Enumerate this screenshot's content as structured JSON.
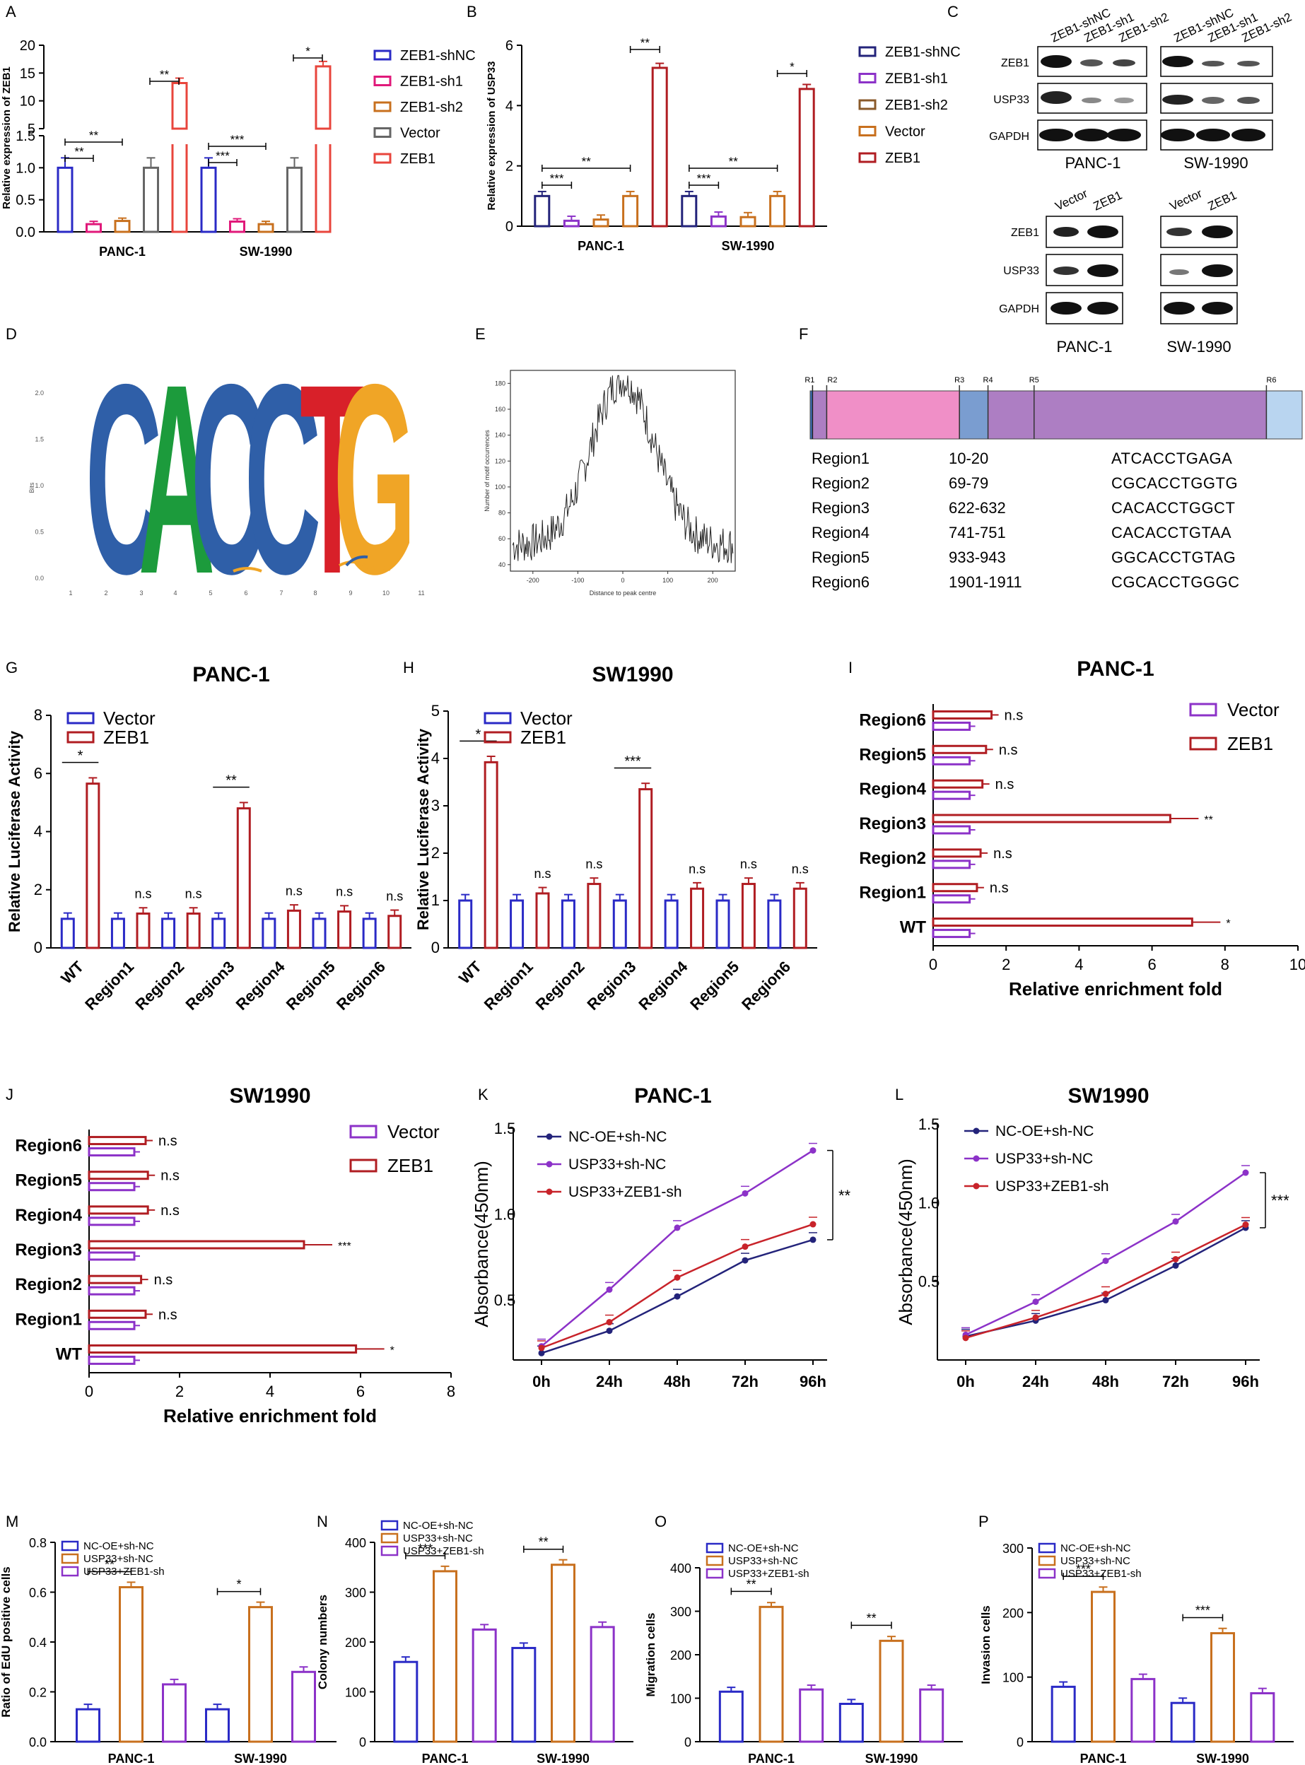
{
  "colors": {
    "blue": "#2a2ac6",
    "magenta": "#e0197a",
    "orange": "#c8701e",
    "gray": "#666666",
    "red": "#e8453c",
    "darkred": "#b01d22",
    "purple": "#8c32c8",
    "navy": "#23237a",
    "pink_region": "#f08fc7",
    "lavender_region": "#ad7ec3",
    "steel_region": "#7a9dd0",
    "light_region": "#b9d5f0"
  },
  "chart_data": [
    {
      "id": "A",
      "panel_label": "A",
      "type": "bar",
      "ylabel": "Relative expression of ZEB1",
      "categories": [
        "PANC-1",
        "SW-1990"
      ],
      "series": [
        {
          "name": "ZEB1-shNC",
          "values": [
            1.0,
            1.0
          ]
        },
        {
          "name": "ZEB1-sh1",
          "values": [
            0.12,
            0.16
          ]
        },
        {
          "name": "ZEB1-sh2",
          "values": [
            0.17,
            0.12
          ]
        },
        {
          "name": "Vector",
          "values": [
            1.0,
            1.0
          ]
        },
        {
          "name": "ZEB1",
          "values": [
            13.2,
            16.2
          ]
        }
      ],
      "axis_break": {
        "lower": [
          0,
          1.5
        ],
        "upper": [
          5,
          20
        ]
      },
      "lower_ticks": [
        "0.0",
        "0.5",
        "1.0",
        "1.5"
      ],
      "upper_ticks": [
        "5",
        "10",
        "15",
        "20"
      ],
      "significance": [
        "**",
        "**",
        "**",
        "***",
        "***",
        "*"
      ]
    },
    {
      "id": "B",
      "panel_label": "B",
      "type": "bar",
      "ylabel": "Relative expression of USP33",
      "categories": [
        "PANC-1",
        "SW-1990"
      ],
      "ylim": [
        0,
        6
      ],
      "yticks": [
        "0",
        "2",
        "4",
        "6"
      ],
      "series": [
        {
          "name": "ZEB1-shNC",
          "values": [
            1.0,
            1.0
          ]
        },
        {
          "name": "ZEB1-sh1",
          "values": [
            0.18,
            0.32
          ]
        },
        {
          "name": "ZEB1-sh2",
          "values": [
            0.22,
            0.3
          ]
        },
        {
          "name": "Vector",
          "values": [
            1.0,
            1.0
          ]
        },
        {
          "name": "ZEB1",
          "values": [
            5.25,
            4.55
          ]
        }
      ],
      "significance": [
        "***",
        "**",
        "**",
        "***",
        "**",
        "*"
      ]
    },
    {
      "id": "C",
      "panel_label": "C",
      "type": "table",
      "top_lanes": [
        "ZEB1-shNC",
        "ZEB1-sh1",
        "ZEB1-sh2",
        "ZEB1-shNC",
        "ZEB1-sh1",
        "ZEB1-sh2"
      ],
      "top_rows": [
        "ZEB1",
        "USP33",
        "GAPDH"
      ],
      "bottom_lanes": [
        "Vector",
        "ZEB1",
        "Vector",
        "ZEB1"
      ],
      "bottom_rows": [
        "ZEB1",
        "USP33",
        "GAPDH"
      ],
      "cells": [
        "PANC-1",
        "SW-1990"
      ]
    },
    {
      "id": "D",
      "panel_label": "D",
      "type": "other",
      "ylabel": "Bits",
      "yticks": [
        "0.0",
        "0.5",
        "1.0",
        "1.5",
        "2.0"
      ],
      "positions": [
        "1",
        "2",
        "3",
        "4",
        "5",
        "6",
        "7",
        "8",
        "9",
        "10",
        "11"
      ],
      "motif": "CACCTG"
    },
    {
      "id": "E",
      "panel_label": "E",
      "type": "line",
      "xlabel": "Distance to peak centre",
      "ylabel": "Number of motif occurrences",
      "xticks": [
        "-200",
        "-100",
        "0",
        "100",
        "200"
      ],
      "yticks": [
        "40",
        "60",
        "80",
        "100",
        "120",
        "140",
        "160",
        "180"
      ],
      "xlim": [
        -250,
        250
      ],
      "ylim": [
        35,
        190
      ],
      "peak_x": 0,
      "peak_y": 183,
      "baseline": 55
    },
    {
      "id": "F",
      "panel_label": "F",
      "type": "table",
      "markers": [
        "R1",
        "R2",
        "R3",
        "R4",
        "R5",
        "R6"
      ],
      "marker_positions": [
        10,
        69,
        622,
        741,
        933,
        1901
      ],
      "sequence_length": 2050,
      "rows": [
        [
          "Region1",
          "10-20",
          "ATCACCTGAGA"
        ],
        [
          "Region2",
          "69-79",
          "CGCACCTGGTG"
        ],
        [
          "Region3",
          "622-632",
          "CACACCTGGCT"
        ],
        [
          "Region4",
          "741-751",
          "CACACCTGTAA"
        ],
        [
          "Region5",
          "933-943",
          "GGCACCTGTAG"
        ],
        [
          "Region6",
          "1901-1911",
          "CGCACCTGGGC"
        ]
      ]
    },
    {
      "id": "G",
      "panel_label": "G",
      "type": "bar",
      "title": "PANC-1",
      "ylabel": "Relative Luciferase Activity",
      "categories": [
        "WT",
        "Region1",
        "Region2",
        "Region3",
        "Region4",
        "Region5",
        "Region6"
      ],
      "ylim": [
        0,
        8
      ],
      "yticks": [
        "0",
        "2",
        "4",
        "6",
        "8"
      ],
      "series": [
        {
          "name": "Vector",
          "values": [
            1.0,
            1.0,
            1.0,
            1.0,
            1.0,
            1.0,
            1.0
          ]
        },
        {
          "name": "ZEB1",
          "values": [
            5.65,
            1.18,
            1.18,
            4.8,
            1.28,
            1.25,
            1.1
          ]
        }
      ],
      "significance": [
        "*",
        "n.s",
        "n.s",
        "**",
        "n.s",
        "n.s",
        "n.s"
      ]
    },
    {
      "id": "H",
      "panel_label": "H",
      "type": "bar",
      "title": "SW1990",
      "ylabel": "Relative Luciferase Activity",
      "categories": [
        "WT",
        "Region1",
        "Region2",
        "Region3",
        "Region4",
        "Region5",
        "Region6"
      ],
      "ylim": [
        0,
        5
      ],
      "yticks": [
        "0",
        "1",
        "2",
        "3",
        "4",
        "5"
      ],
      "series": [
        {
          "name": "Vector",
          "values": [
            1.0,
            1.0,
            1.0,
            1.0,
            1.0,
            1.0,
            1.0
          ]
        },
        {
          "name": "ZEB1",
          "values": [
            3.92,
            1.15,
            1.35,
            3.35,
            1.25,
            1.35,
            1.25
          ]
        }
      ],
      "significance": [
        "*",
        "n.s",
        "n.s",
        "***",
        "n.s",
        "n.s",
        "n.s"
      ]
    },
    {
      "id": "I",
      "panel_label": "I",
      "type": "bar",
      "title": "PANC-1",
      "xlabel": "Relative enrichment fold",
      "categories": [
        "WT",
        "Region1",
        "Region2",
        "Region3",
        "Region4",
        "Region5",
        "Region6"
      ],
      "xlim": [
        0,
        10
      ],
      "xticks": [
        "0",
        "2",
        "4",
        "6",
        "8",
        "10"
      ],
      "series": [
        {
          "name": "Vector",
          "values": [
            1.0,
            1.0,
            1.0,
            1.0,
            1.0,
            1.0,
            1.0
          ]
        },
        {
          "name": "ZEB1",
          "values": [
            7.1,
            1.2,
            1.3,
            6.5,
            1.35,
            1.45,
            1.6
          ]
        }
      ],
      "significance": [
        "*",
        "n.s",
        "n.s",
        "**",
        "n.s",
        "n.s",
        "n.s"
      ]
    },
    {
      "id": "J",
      "panel_label": "J",
      "type": "bar",
      "title": "SW1990",
      "xlabel": "Relative enrichment fold",
      "categories": [
        "WT",
        "Region1",
        "Region2",
        "Region3",
        "Region4",
        "Region5",
        "Region6"
      ],
      "xlim": [
        0,
        8
      ],
      "xticks": [
        "0",
        "2",
        "4",
        "6",
        "8"
      ],
      "series": [
        {
          "name": "Vector",
          "values": [
            1.0,
            1.0,
            1.0,
            1.0,
            1.0,
            1.0,
            1.0
          ]
        },
        {
          "name": "ZEB1",
          "values": [
            5.9,
            1.25,
            1.15,
            4.75,
            1.3,
            1.3,
            1.25
          ]
        }
      ],
      "significance": [
        "*",
        "n.s",
        "n.s",
        "***",
        "n.s",
        "n.s",
        "n.s"
      ]
    },
    {
      "id": "K",
      "panel_label": "K",
      "type": "line",
      "title": "PANC-1",
      "ylabel": "Absorbance(450nm)",
      "x": [
        "0h",
        "24h",
        "48h",
        "72h",
        "96h"
      ],
      "ylim": [
        0.15,
        1.5
      ],
      "yticks": [
        "0.5",
        "1.0",
        "1.5"
      ],
      "series": [
        {
          "name": "NC-OE+sh-NC",
          "values": [
            0.19,
            0.32,
            0.52,
            0.73,
            0.85
          ]
        },
        {
          "name": "USP33+sh-NC",
          "values": [
            0.23,
            0.56,
            0.92,
            1.12,
            1.37
          ]
        },
        {
          "name": "USP33+ZEB1-sh",
          "values": [
            0.22,
            0.37,
            0.63,
            0.81,
            0.94
          ]
        }
      ],
      "significance": "**"
    },
    {
      "id": "L",
      "panel_label": "L",
      "type": "line",
      "title": "SW1990",
      "ylabel": "Absorbance(450nm)",
      "x": [
        "0h",
        "24h",
        "48h",
        "72h",
        "96h"
      ],
      "ylim": [
        0.0,
        1.5
      ],
      "yticks": [
        "0.5",
        "1.0",
        "1.5"
      ],
      "series": [
        {
          "name": "NC-OE+sh-NC",
          "values": [
            0.15,
            0.25,
            0.38,
            0.6,
            0.84
          ]
        },
        {
          "name": "USP33+sh-NC",
          "values": [
            0.16,
            0.37,
            0.63,
            0.88,
            1.19
          ]
        },
        {
          "name": "USP33+ZEB1-sh",
          "values": [
            0.14,
            0.27,
            0.42,
            0.64,
            0.86
          ]
        }
      ],
      "significance": "***"
    },
    {
      "id": "M",
      "panel_label": "M",
      "type": "bar",
      "ylabel": "Ratio of EdU positive cells",
      "categories": [
        "PANC-1",
        "SW-1990"
      ],
      "ylim": [
        0,
        0.8
      ],
      "yticks": [
        "0.0",
        "0.2",
        "0.4",
        "0.6",
        "0.8"
      ],
      "series": [
        {
          "name": "NC-OE+sh-NC",
          "values": [
            0.13,
            0.13
          ]
        },
        {
          "name": "USP33+sh-NC",
          "values": [
            0.62,
            0.54
          ]
        },
        {
          "name": "USP33+ZEB1-sh",
          "values": [
            0.23,
            0.28
          ]
        }
      ],
      "significance": [
        "**",
        "*"
      ]
    },
    {
      "id": "N",
      "panel_label": "N",
      "type": "bar",
      "ylabel": "Colony numbers",
      "categories": [
        "PANC-1",
        "SW-1990"
      ],
      "ylim": [
        0,
        400
      ],
      "yticks": [
        "0",
        "100",
        "200",
        "300",
        "400"
      ],
      "series": [
        {
          "name": "NC-OE+sh-NC",
          "values": [
            160,
            188
          ]
        },
        {
          "name": "USP33+sh-NC",
          "values": [
            342,
            355
          ]
        },
        {
          "name": "USP33+ZEB1-sh",
          "values": [
            225,
            230
          ]
        }
      ],
      "significance": [
        "***",
        "**"
      ]
    },
    {
      "id": "O",
      "panel_label": "O",
      "type": "bar",
      "ylabel": "Migration cells",
      "categories": [
        "PANC-1",
        "SW-1990"
      ],
      "ylim": [
        0,
        400
      ],
      "yticks": [
        "0",
        "100",
        "200",
        "300",
        "400"
      ],
      "series": [
        {
          "name": "NC-OE+sh-NC",
          "values": [
            115,
            87
          ]
        },
        {
          "name": "USP33+sh-NC",
          "values": [
            310,
            232
          ]
        },
        {
          "name": "USP33+ZEB1-sh",
          "values": [
            120,
            120
          ]
        }
      ],
      "significance": [
        "**",
        "**"
      ]
    },
    {
      "id": "P",
      "panel_label": "P",
      "type": "bar",
      "ylabel": "Invasion cells",
      "categories": [
        "PANC-1",
        "SW-1990"
      ],
      "ylim": [
        0,
        300
      ],
      "yticks": [
        "0",
        "100",
        "200",
        "300"
      ],
      "series": [
        {
          "name": "NC-OE+sh-NC",
          "values": [
            85,
            60
          ]
        },
        {
          "name": "USP33+sh-NC",
          "values": [
            232,
            168
          ]
        },
        {
          "name": "USP33+ZEB1-sh",
          "values": [
            97,
            75
          ]
        }
      ],
      "significance": [
        "***",
        "***"
      ]
    }
  ]
}
